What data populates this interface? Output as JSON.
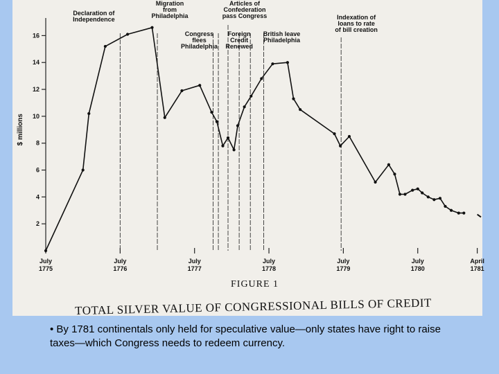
{
  "chart_data": {
    "type": "line",
    "title": "TOTAL SILVER VALUE OF CONGRESSIONAL BILLS OF CREDIT",
    "figure_label": "FIGURE 1",
    "ylabel": "$ millions",
    "xlabel": "",
    "ylim": [
      0,
      17
    ],
    "yticks": [
      2,
      4,
      6,
      8,
      10,
      12,
      14,
      16
    ],
    "xlim": [
      1775.5,
      1781.35
    ],
    "xticks": [
      {
        "x": 1775.5,
        "line1": "July",
        "line2": "1775"
      },
      {
        "x": 1776.5,
        "line1": "July",
        "line2": "1776"
      },
      {
        "x": 1777.5,
        "line1": "July",
        "line2": "1777"
      },
      {
        "x": 1778.5,
        "line1": "July",
        "line2": "1778"
      },
      {
        "x": 1779.5,
        "line1": "July",
        "line2": "1779"
      },
      {
        "x": 1780.5,
        "line1": "July",
        "line2": "1780"
      },
      {
        "x": 1781.3,
        "line1": "April",
        "line2": "1781"
      }
    ],
    "series": [
      {
        "name": "Total silver value",
        "points": [
          [
            1775.5,
            0.0
          ],
          [
            1776.0,
            6.0
          ],
          [
            1776.08,
            10.2
          ],
          [
            1776.3,
            15.2
          ],
          [
            1776.6,
            16.1
          ],
          [
            1776.93,
            16.6
          ],
          [
            1777.1,
            9.9
          ],
          [
            1777.33,
            11.9
          ],
          [
            1777.57,
            12.3
          ],
          [
            1777.73,
            10.3
          ],
          [
            1777.8,
            9.6
          ],
          [
            1777.88,
            7.8
          ],
          [
            1777.95,
            8.4
          ],
          [
            1778.03,
            7.5
          ],
          [
            1778.08,
            9.3
          ],
          [
            1778.17,
            10.7
          ],
          [
            1778.26,
            11.5
          ],
          [
            1778.4,
            12.8
          ],
          [
            1778.55,
            13.9
          ],
          [
            1778.75,
            14.0
          ],
          [
            1778.83,
            11.3
          ],
          [
            1778.92,
            10.5
          ],
          [
            1779.38,
            8.7
          ],
          [
            1779.46,
            7.8
          ],
          [
            1779.58,
            8.5
          ],
          [
            1779.93,
            5.1
          ],
          [
            1780.11,
            6.4
          ],
          [
            1780.19,
            5.7
          ],
          [
            1780.26,
            4.2
          ],
          [
            1780.33,
            4.2
          ],
          [
            1780.43,
            4.5
          ],
          [
            1780.5,
            4.6
          ],
          [
            1780.56,
            4.3
          ],
          [
            1780.64,
            4.0
          ],
          [
            1780.72,
            3.8
          ],
          [
            1780.8,
            3.9
          ],
          [
            1780.87,
            3.3
          ],
          [
            1780.95,
            3.0
          ],
          [
            1781.05,
            2.8
          ],
          [
            1781.12,
            2.8
          ]
        ],
        "tail": [
          [
            1781.3,
            2.7
          ],
          [
            1781.35,
            2.5
          ]
        ]
      }
    ],
    "events": [
      {
        "x": 1776.5,
        "lines": [
          "Declaration of",
          "Independence"
        ]
      },
      {
        "x": 1777.0,
        "lines": [
          "Migration",
          "from",
          "Philadelphia"
        ]
      },
      {
        "x": 1777.75,
        "lines": [
          "Congress",
          "flees",
          "Philadelphia"
        ]
      },
      {
        "x": 1777.82,
        "lines": []
      },
      {
        "x": 1777.95,
        "lines": [
          "Articles of",
          "Confederation",
          "pass Congress"
        ]
      },
      {
        "x": 1778.1,
        "lines": [
          "Foreign",
          "Credit",
          "Renewed"
        ]
      },
      {
        "x": 1778.25,
        "lines": []
      },
      {
        "x": 1778.43,
        "lines": [
          "British leave",
          "Philadelphia"
        ]
      },
      {
        "x": 1779.47,
        "lines": [
          "Indexation of",
          "loans to rate",
          "of bill creation"
        ]
      }
    ]
  },
  "caption": "• By 1781 continentals only held for speculative value—only states have right to raise taxes—which Congress needs to redeem currency."
}
